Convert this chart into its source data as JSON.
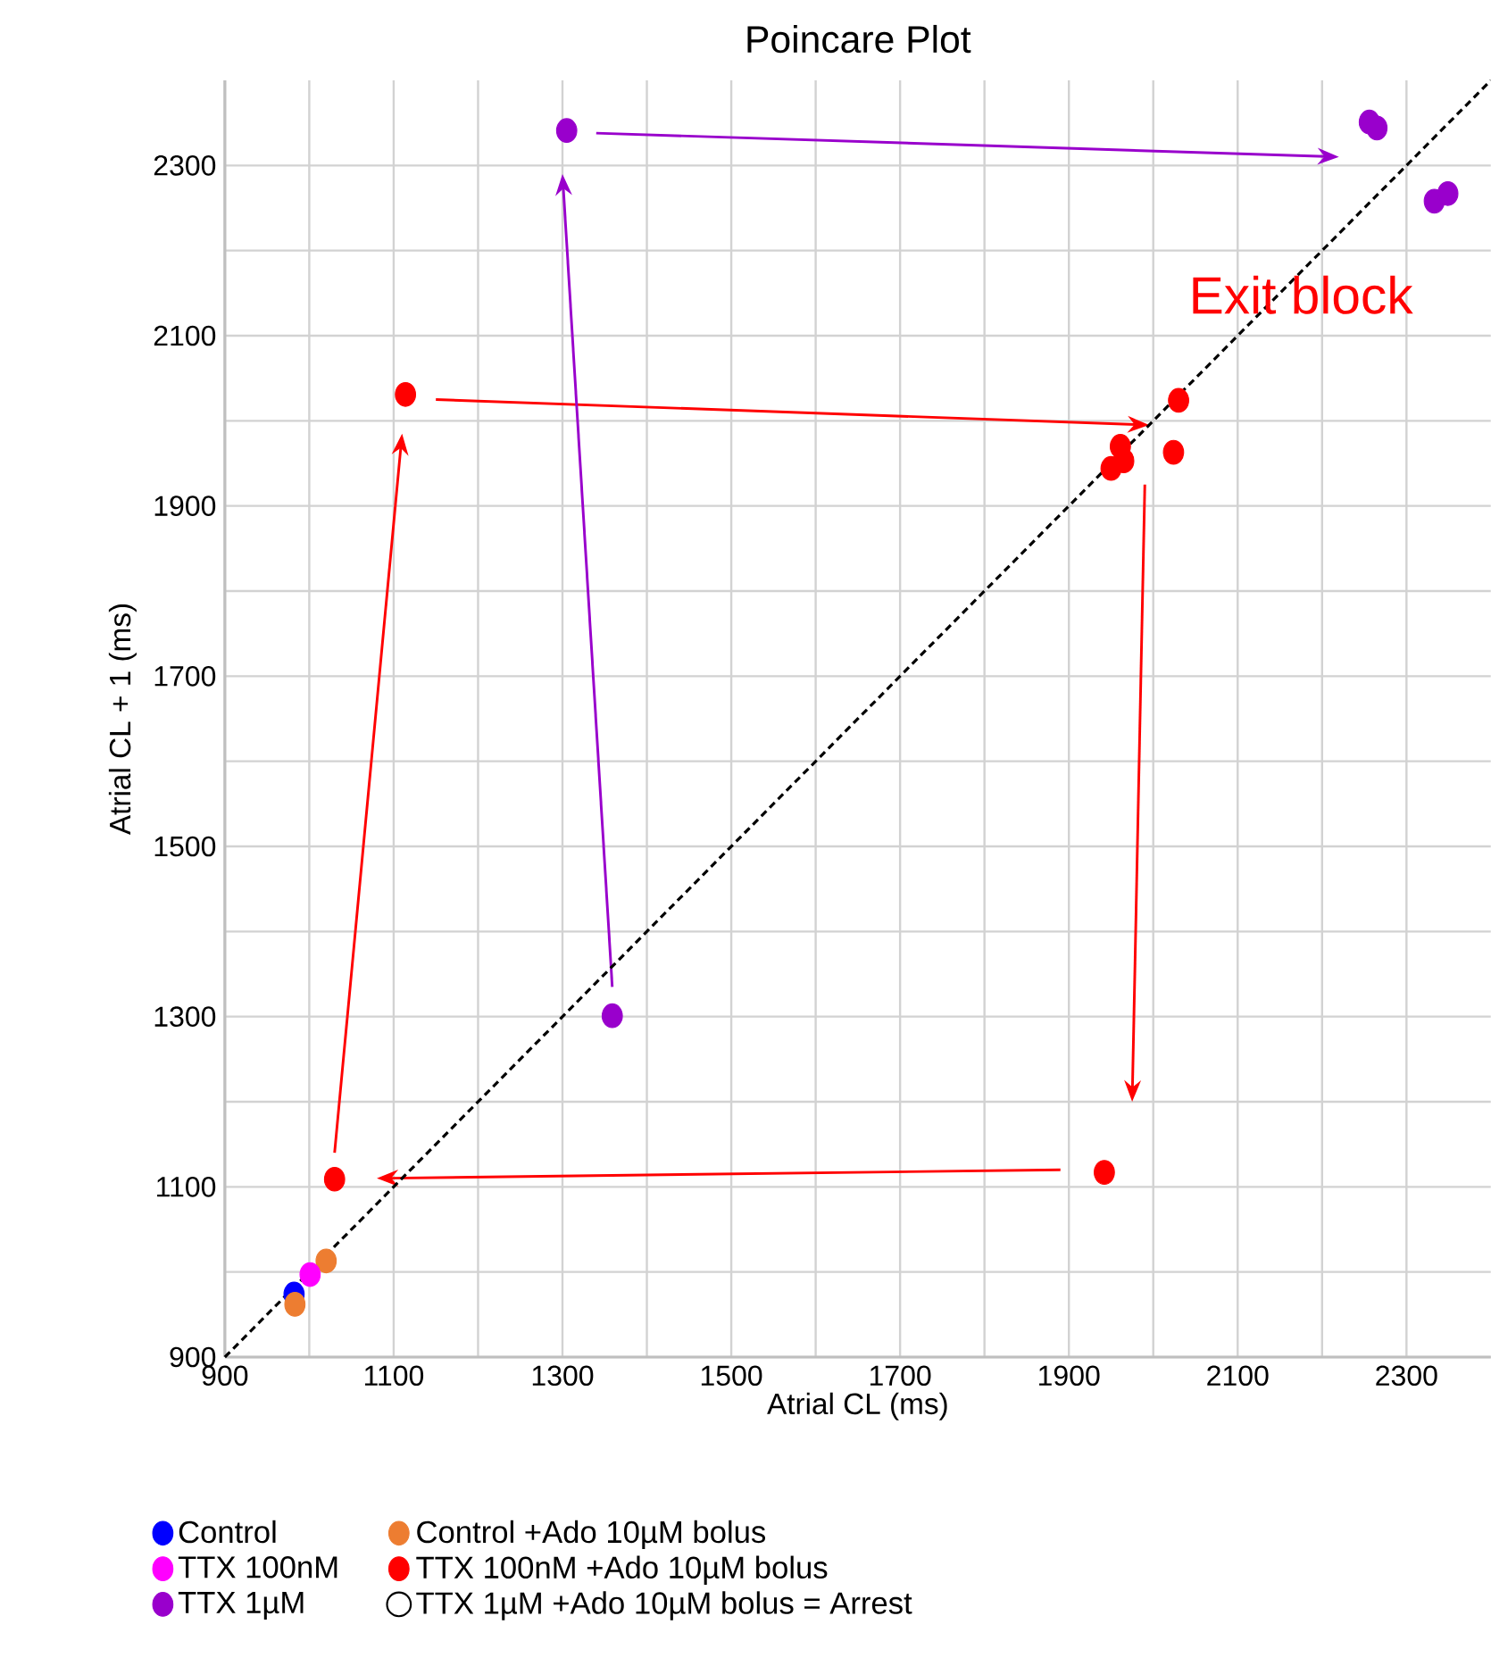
{
  "chart_data": {
    "type": "scatter",
    "title": "Poincare Plot",
    "xlabel": "Atrial CL (ms)",
    "ylabel": "Atrial CL + 1 (ms)",
    "annotations": [
      "Exit block"
    ],
    "xlim": [
      900,
      2400
    ],
    "ylim": [
      900,
      2400
    ],
    "xticks": [
      900,
      1100,
      1300,
      1500,
      1700,
      1900,
      2100,
      2300
    ],
    "yticks": [
      900,
      1100,
      1300,
      1500,
      1700,
      1900,
      2100,
      2300
    ],
    "grid": true,
    "legend": "bottom",
    "marker": "circle",
    "series": [
      {
        "name": "Control",
        "color": "#0000ff",
        "x": [
          982
        ],
        "values": [
          974
        ]
      },
      {
        "name": "Control +Ado 10µM bolus",
        "color": "#ed7d31",
        "x": [
          983,
          1020
        ],
        "values": [
          962,
          1013
        ]
      },
      {
        "name": "TTX 100nM",
        "color": "#ff00ff",
        "x": [
          1001
        ],
        "values": [
          997
        ]
      },
      {
        "name": "TTX 100nM +Ado 10µM bolus",
        "color": "#ff0000",
        "x": [
          1114,
          1961,
          1965,
          1950,
          2030,
          2024,
          1030,
          1942
        ],
        "values": [
          2031,
          1970,
          1953,
          1944,
          2024,
          1963,
          1109,
          1117
        ]
      },
      {
        "name": "TTX 1µM",
        "color": "#9900cc",
        "x": [
          1305,
          2256,
          2265,
          2333,
          2349,
          1359
        ],
        "values": [
          2341,
          2351,
          2344,
          2258,
          2267,
          1301
        ]
      },
      {
        "name": "TTX 1µM +Ado 10µM bolus = Arrest",
        "color": "#000000"
      },
      {
        "type": "line",
        "color": "#000000",
        "line_style": "dashed",
        "marker": "none",
        "x": [
          900,
          2400
        ],
        "values": [
          900,
          2400
        ]
      }
    ]
  }
}
